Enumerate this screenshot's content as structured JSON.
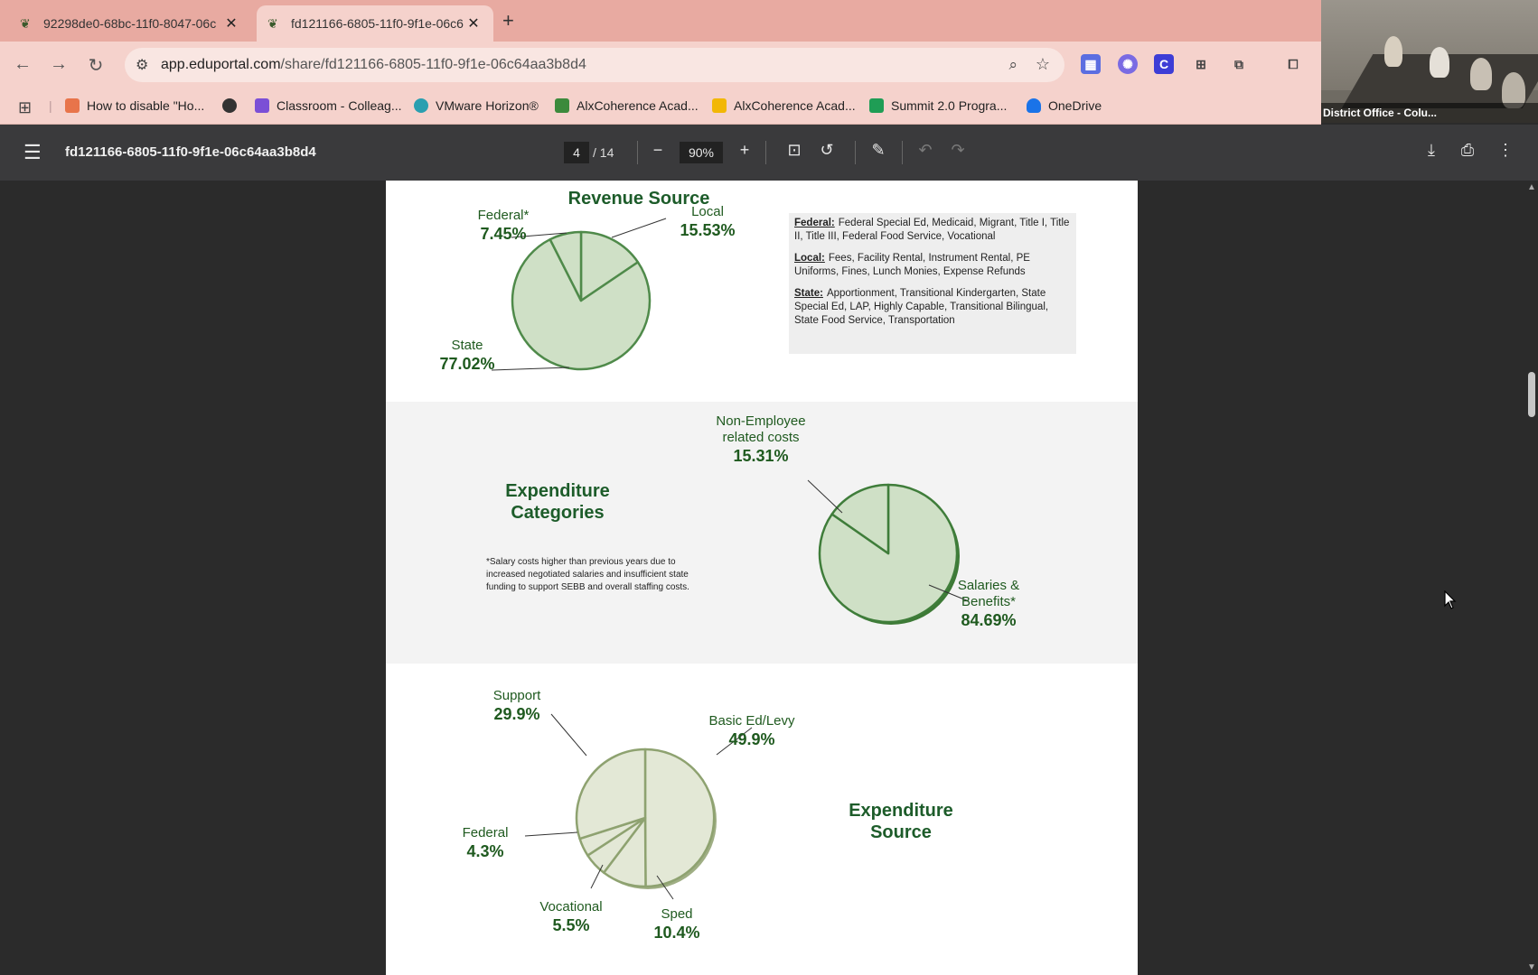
{
  "browser": {
    "tabs": [
      {
        "title": "92298de0-68bc-11f0-8047-06c",
        "active": false
      },
      {
        "title": "fd121166-6805-11f0-9f1e-06c6",
        "active": true
      }
    ],
    "url_host": "app.eduportal.com",
    "url_path": "/share/fd121166-6805-11f0-9f1e-06c64aa3b8d4",
    "bookmarks": [
      {
        "label": "How to disable \"Ho...",
        "color": "#e8744a"
      },
      {
        "label": "",
        "color": "#333333"
      },
      {
        "label": "Classroom - Colleag...",
        "color": "#7b4fd6"
      },
      {
        "label": "VMware Horizon®",
        "color": "#2a9fb0"
      },
      {
        "label": "AlxCoherence Acad...",
        "color": "#3c8a3c"
      },
      {
        "label": "AlxCoherence Acad...",
        "color": "#f2b705"
      },
      {
        "label": "Summit 2.0 Progra...",
        "color": "#1f9d55"
      },
      {
        "label": "OneDrive",
        "color": "#1a73e8"
      }
    ]
  },
  "video": {
    "caption": "District Office - Colu..."
  },
  "pdf": {
    "filename": "fd121166-6805-11f0-9f1e-06c64aa3b8d4",
    "page_current": "4",
    "page_total": "/ 14",
    "zoom": "90%"
  },
  "colors": {
    "pie_fill": "#cfe0c6",
    "pie_stroke": "#4f8a4a",
    "pie3_fill": "#e3e8d6",
    "pie3_stroke": "#8ea270",
    "title_green": "#1d5c2a"
  },
  "chart_data": [
    {
      "type": "pie",
      "title": "Revenue Source",
      "slices": [
        {
          "label": "Federal*",
          "value": 7.45,
          "value_text": "7.45%"
        },
        {
          "label": "Local",
          "value": 15.53,
          "value_text": "15.53%"
        },
        {
          "label": "State",
          "value": 77.02,
          "value_text": "77.02%"
        }
      ]
    },
    {
      "type": "pie",
      "title": "Expenditure Categories",
      "slices": [
        {
          "label": "Non-Employee related costs",
          "label_lines": [
            "Non-Employee",
            "related costs"
          ],
          "value": 15.31,
          "value_text": "15.31%"
        },
        {
          "label": "Salaries & Benefits*",
          "label_lines": [
            "Salaries &",
            "Benefits*"
          ],
          "value": 84.69,
          "value_text": "84.69%"
        }
      ]
    },
    {
      "type": "pie",
      "title": "Expenditure Source",
      "slices": [
        {
          "label": "Basic Ed/Levy",
          "value": 49.9,
          "value_text": "49.9%"
        },
        {
          "label": "Sped",
          "value": 10.4,
          "value_text": "10.4%"
        },
        {
          "label": "Vocational",
          "value": 5.5,
          "value_text": "5.5%"
        },
        {
          "label": "Federal",
          "value": 4.3,
          "value_text": "4.3%"
        },
        {
          "label": "Support",
          "value": 29.9,
          "value_text": "29.9%"
        }
      ]
    }
  ],
  "legend": {
    "federal_key": "Federal:",
    "federal_text": "Federal Special Ed, Medicaid, Migrant, Title I, Title II, Title III, Federal Food Service, Vocational",
    "local_key": "Local:",
    "local_text": "Fees, Facility Rental, Instrument Rental, PE Uniforms, Fines, Lunch Monies, Expense Refunds",
    "state_key": "State:",
    "state_text": "Apportionment, Transitional Kindergarten, State Special Ed, LAP, Highly Capable, Transitional Bilingual, State Food Service, Transportation"
  },
  "note": "*Salary costs higher than previous years due to increased negotiated salaries and insufficient state funding to support SEBB and overall staffing costs.",
  "titles": {
    "exp_cat_line1": "Expenditure",
    "exp_cat_line2": "Categories",
    "exp_src_line1": "Expenditure",
    "exp_src_line2": "Source"
  }
}
